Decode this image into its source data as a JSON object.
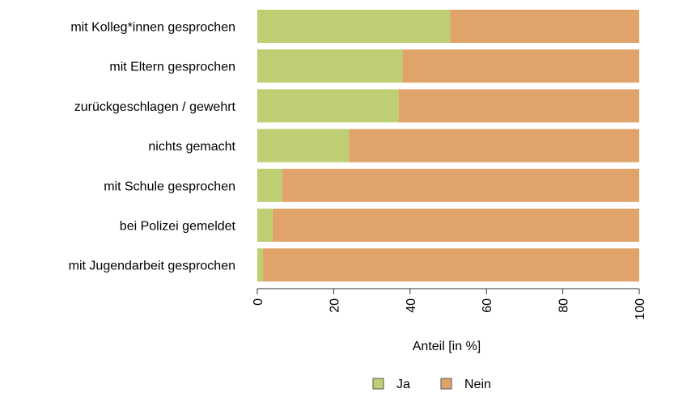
{
  "chart_data": {
    "type": "bar",
    "orientation": "horizontal",
    "stacked": true,
    "categories": [
      "mit Kolleg*innen gesprochen",
      "mit Eltern gesprochen",
      "zurückgeschlagen / gewehrt",
      "nichts gemacht",
      "mit Schule gesprochen",
      "bei Polizei gemeldet",
      "mit Jugendarbeit gesprochen"
    ],
    "series": [
      {
        "name": "Ja",
        "color": "#bdcf72",
        "values": [
          50.5,
          38,
          37,
          24,
          6.5,
          4,
          1.5
        ]
      },
      {
        "name": "Nein",
        "color": "#e0a46a",
        "values": [
          49.5,
          62,
          63,
          76,
          93.5,
          96,
          98.5
        ]
      }
    ],
    "xlabel": "Anteil [in %]",
    "xlim": [
      0,
      100
    ],
    "xticks": [
      "0",
      "20",
      "40",
      "60",
      "80",
      "100"
    ],
    "legend_position": "bottom",
    "grid": false
  }
}
